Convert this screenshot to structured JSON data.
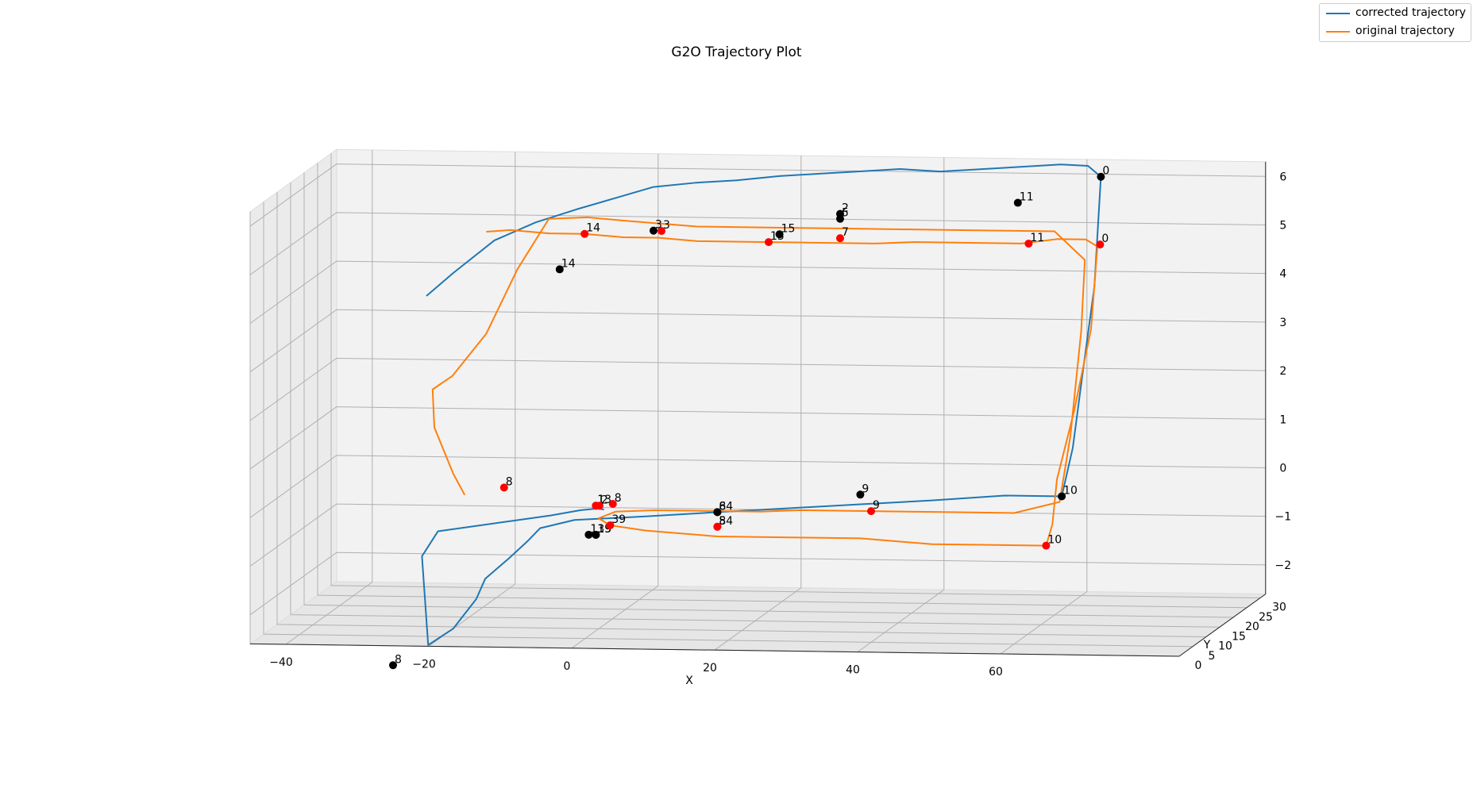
{
  "chart_data": {
    "type": "line",
    "title": "G2O Trajectory Plot",
    "xlabel": "X",
    "ylabel": "Y",
    "zlabel": "",
    "xlim": [
      -45,
      85
    ],
    "ylim": [
      0,
      32
    ],
    "zlim": [
      -2.6,
      6.3
    ],
    "x_ticks": [
      "−40",
      "−20",
      "0",
      "20",
      "40",
      "60"
    ],
    "y_ticks": [
      "0",
      "5",
      "10",
      "15",
      "20",
      "25",
      "30"
    ],
    "z_ticks": [
      "−2",
      "−1",
      "0",
      "1",
      "2",
      "3",
      "4",
      "5",
      "6"
    ],
    "grid": true,
    "legend_position": "top-right",
    "series": [
      {
        "name": "corrected trajectory",
        "color": "#1f77b4",
        "x": [
          -26,
          -23,
          -18,
          -13,
          -8,
          -3,
          2,
          8,
          14,
          20,
          26,
          32,
          38,
          44,
          50,
          56,
          62,
          66,
          68,
          68.6,
          68.4,
          68.6,
          68,
          60,
          50,
          40,
          30,
          20,
          10,
          0,
          -5,
          -7,
          -10,
          -14,
          -16,
          -20,
          -24,
          -25,
          -27,
          -24,
          -18,
          -12,
          -6,
          -1,
          2,
          3
        ],
        "y": [
          15,
          17,
          19,
          21,
          23,
          24,
          25,
          25,
          24,
          24,
          23,
          22,
          21,
          20,
          19,
          18,
          17,
          16.5,
          16,
          12,
          8,
          4,
          1.5,
          1.5,
          1,
          1,
          1,
          1,
          0.8,
          1,
          1.5,
          2,
          3,
          5,
          7,
          9,
          11,
          13,
          16,
          14,
          12,
          10,
          8,
          6,
          4.5,
          4
        ],
        "z": [
          4.0,
          4.4,
          5.0,
          5.3,
          5.5,
          5.7,
          5.9,
          6.0,
          6.1,
          6.2,
          6.3,
          6.4,
          6.5,
          6.5,
          6.6,
          6.7,
          6.8,
          6.8,
          6.6,
          4.5,
          2.8,
          1.5,
          0.6,
          0.6,
          0.5,
          0.4,
          0.3,
          0.2,
          0.1,
          0.0,
          -0.2,
          -0.5,
          -0.9,
          -1.4,
          -1.9,
          -2.6,
          -3.0,
          -3.1,
          -1.4,
          -0.8,
          -0.6,
          -0.4,
          -0.2,
          0.0,
          0.1,
          0.1
        ]
      },
      {
        "name": "original trajectory",
        "color": "#ff7f0e",
        "x": [
          -18,
          -15,
          -10,
          -5,
          0,
          5,
          10,
          15,
          20,
          25,
          30,
          35,
          40,
          45,
          50,
          55,
          60,
          64,
          66,
          67,
          66.5,
          66,
          66.5,
          66,
          60,
          50,
          40,
          30,
          20,
          10,
          5,
          3,
          5,
          10,
          15,
          20,
          25,
          30,
          40,
          50,
          60,
          66,
          66,
          66,
          65,
          60,
          50,
          40,
          30,
          20,
          10,
          0,
          -5,
          -10,
          -14,
          -18,
          -22,
          -24,
          -23,
          -20,
          -18
        ],
        "y": [
          16,
          17,
          18,
          18,
          19,
          19,
          20,
          20,
          20,
          20,
          20,
          20,
          21,
          21,
          21,
          21,
          21,
          21,
          20,
          15,
          10,
          5,
          2,
          1,
          1,
          1,
          1,
          1,
          1,
          1,
          1,
          2,
          3,
          4,
          4,
          4,
          4,
          5,
          5,
          5,
          5,
          6,
          10,
          14,
          18,
          20,
          20,
          20,
          20,
          20,
          20,
          20,
          19,
          18,
          17,
          16,
          14,
          12,
          10,
          9,
          8
        ],
        "z": [
          5.3,
          5.3,
          5.2,
          5.2,
          5.1,
          5.1,
          5.0,
          5.0,
          5.0,
          5.0,
          5.0,
          5.0,
          5.0,
          5.0,
          5.0,
          5.0,
          5.1,
          5.1,
          5.0,
          3.5,
          2.0,
          0.8,
          0.0,
          -0.4,
          -0.4,
          -0.4,
          -0.3,
          -0.3,
          -0.3,
          -0.2,
          -0.1,
          0.0,
          0.1,
          0.1,
          0.1,
          0.1,
          0.1,
          0.1,
          0.1,
          0.1,
          0.1,
          0.3,
          1.5,
          3.5,
          4.8,
          5.3,
          5.3,
          5.3,
          5.3,
          5.3,
          5.3,
          5.4,
          5.5,
          5.5,
          4.5,
          3.2,
          2.4,
          2.2,
          1.5,
          0.6,
          0.2
        ]
      }
    ],
    "point_groups": [
      {
        "color": "#000000",
        "points": [
          {
            "label": "0",
            "x": 68,
            "y": 16,
            "z": 6.6
          },
          {
            "label": "11",
            "x": 56,
            "y": 17,
            "z": 6.0
          },
          {
            "label": "2",
            "x": 30,
            "y": 20,
            "z": 5.6
          },
          {
            "label": "5",
            "x": 30,
            "y": 20,
            "z": 5.5
          },
          {
            "label": "15",
            "x": 20,
            "y": 24,
            "z": 5.0
          },
          {
            "label": "3",
            "x": 2,
            "y": 25,
            "z": 5.0
          },
          {
            "label": "14",
            "x": -10,
            "y": 22,
            "z": 4.3
          },
          {
            "label": "9",
            "x": 40,
            "y": 1,
            "z": 0.6
          },
          {
            "label": "10",
            "x": 68,
            "y": 1.5,
            "z": 0.6
          },
          {
            "label": "6",
            "x": 20,
            "y": 1,
            "z": 0.2
          },
          {
            "label": "84",
            "x": 20,
            "y": 1,
            "z": 0.2
          },
          {
            "label": "1",
            "x": 2,
            "y": 1,
            "z": -0.3
          },
          {
            "label": "13",
            "x": 3,
            "y": 1,
            "z": -0.3
          },
          {
            "label": "39",
            "x": 3,
            "y": 1,
            "z": -0.3
          },
          {
            "label": "8",
            "x": -25,
            "y": 0,
            "z": -3.0
          }
        ]
      },
      {
        "color": "#ff0000",
        "points": [
          {
            "label": "0",
            "x": 66,
            "y": 21,
            "z": 5.0
          },
          {
            "label": "11",
            "x": 56,
            "y": 21,
            "z": 5.0
          },
          {
            "label": "7",
            "x": 30,
            "y": 20,
            "z": 5.1
          },
          {
            "label": "15",
            "x": 20,
            "y": 20,
            "z": 5.0
          },
          {
            "label": "3",
            "x": 5,
            "y": 20,
            "z": 5.2
          },
          {
            "label": "14",
            "x": -5,
            "y": 18,
            "z": 5.2
          },
          {
            "label": "9",
            "x": 40,
            "y": 5,
            "z": 0.1
          },
          {
            "label": "10",
            "x": 66,
            "y": 1,
            "z": -0.4
          },
          {
            "label": "5",
            "x": 20,
            "y": 1,
            "z": -0.1
          },
          {
            "label": "84",
            "x": 20,
            "y": 1,
            "z": -0.1
          },
          {
            "label": "1",
            "x": 3,
            "y": 1,
            "z": 0.3
          },
          {
            "label": "13",
            "x": 3,
            "y": 1,
            "z": 0.3
          },
          {
            "label": "2",
            "x": 3.5,
            "y": 1,
            "z": 0.3
          },
          {
            "label": "8",
            "x": 5,
            "y": 2,
            "z": 0.3
          },
          {
            "label": "39",
            "x": 5,
            "y": 1,
            "z": -0.1
          },
          {
            "label": "8",
            "x": -14,
            "y": 12,
            "z": 0.2
          }
        ]
      }
    ]
  }
}
